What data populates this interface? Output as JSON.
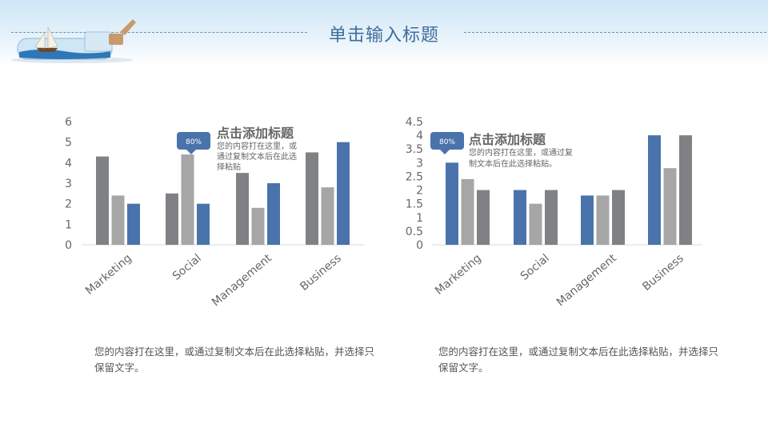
{
  "slide": {
    "title": "单击输入标题",
    "note_left": "您的内容打在这里，或通过复制文本后在此选择粘贴，并选择只保留文字。",
    "note_right": "您的内容打在这里，或通过复制文本后在此选择粘贴，并选择只保留文字。"
  },
  "colors": {
    "dark_gray": "#808184",
    "light_gray": "#a6a6a6",
    "blue": "#4a73ac",
    "title": "#3f6c9c",
    "badge": "#4a73ac"
  },
  "chart_data": [
    {
      "type": "bar",
      "categories": [
        "Marketing",
        "Social",
        "Management",
        "Business"
      ],
      "series": [
        {
          "values": [
            4.3,
            2.5,
            3.5,
            4.5
          ],
          "color": "#808184"
        },
        {
          "values": [
            2.4,
            4.4,
            1.8,
            2.8
          ],
          "color": "#a6a6a6"
        },
        {
          "values": [
            2.0,
            2.0,
            3.0,
            5.0
          ],
          "color": "#4a73ac"
        }
      ],
      "ylim": [
        0,
        6
      ],
      "yticks": [
        "0",
        "1",
        "2",
        "3",
        "4",
        "5",
        "6"
      ],
      "grid": false,
      "callout": {
        "badge": "80%",
        "title": "点击添加标题",
        "text_lines": [
          "您的内容打在这里，或",
          "通过复制文本后在此选",
          "择粘贴"
        ]
      }
    },
    {
      "type": "bar",
      "categories": [
        "Marketing",
        "Social",
        "Management",
        "Business"
      ],
      "series": [
        {
          "values": [
            3.0,
            2.0,
            1.8,
            4.0
          ],
          "color": "#4a73ac"
        },
        {
          "values": [
            2.4,
            1.5,
            1.8,
            2.8
          ],
          "color": "#a6a6a6"
        },
        {
          "values": [
            2.0,
            2.0,
            2.0,
            4.0
          ],
          "color": "#808184"
        }
      ],
      "ylim": [
        0,
        4.5
      ],
      "yticks": [
        "0",
        "0.5",
        "1",
        "1.5",
        "2",
        "2.5",
        "3",
        "3.5",
        "4",
        "4.5"
      ],
      "grid": false,
      "callout": {
        "badge": "80%",
        "title": "点击添加标题",
        "text_lines": [
          "您的内容打在这里，或通过复",
          "制文本后在此选择粘贴。"
        ]
      }
    }
  ]
}
